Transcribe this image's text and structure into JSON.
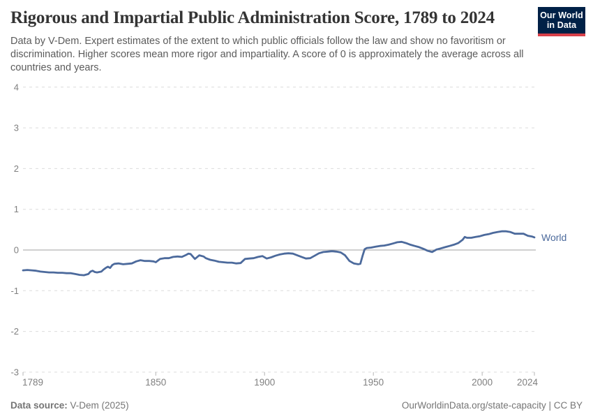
{
  "header": {
    "title": "Rigorous and Impartial Public Administration Score, 1789 to 2024",
    "subtitle": "Data by V-Dem. Expert estimates of the extent to which public officials follow the law and show no favoritism or discrimination. Higher scores mean more rigor and impartiality. A score of 0 is approximately the average across all countries and years.",
    "logo": {
      "line1": "Our World",
      "line2": "in Data"
    }
  },
  "footer": {
    "source_label": "Data source:",
    "source_value": " V-Dem (2025)",
    "link": "OurWorldinData.org/state-capacity | CC BY"
  },
  "colors": {
    "line": "#4c6a9c",
    "series_label": "#4c6a9c",
    "gridline": "#dcdcdc",
    "zero_line": "#a0a0a0",
    "axis_label": "#808080",
    "tick_mark": "#b4b4b4",
    "logo_bg": "#002147",
    "logo_stripe": "#d8404a",
    "title_text": "#343434",
    "subtitle_text": "#5b5b5b",
    "footer_text": "#757575"
  },
  "chart_data": {
    "type": "line",
    "title": "Rigorous and Impartial Public Administration Score, 1789 to 2024",
    "xlabel": "",
    "ylabel": "",
    "xlim": [
      1789,
      2024
    ],
    "ylim": [
      -3,
      4
    ],
    "y_ticks": [
      4,
      3,
      2,
      1,
      0,
      -1,
      -2,
      -3
    ],
    "x_ticks": [
      1789,
      1850,
      1900,
      1950,
      2000,
      2024
    ],
    "grid": "horizontal-dashed",
    "zero_line": true,
    "legend_position": "end-of-line",
    "series": [
      {
        "name": "World",
        "x": [
          1789,
          1791,
          1793,
          1795,
          1797,
          1799,
          1801,
          1803,
          1805,
          1807,
          1809,
          1811,
          1813,
          1815,
          1817,
          1819,
          1820,
          1821,
          1822,
          1823,
          1825,
          1826,
          1827,
          1828,
          1829,
          1830,
          1831,
          1833,
          1835,
          1837,
          1839,
          1841,
          1843,
          1845,
          1847,
          1849,
          1850,
          1852,
          1854,
          1856,
          1858,
          1860,
          1862,
          1864,
          1865,
          1866,
          1868,
          1870,
          1872,
          1873,
          1875,
          1877,
          1879,
          1881,
          1883,
          1885,
          1887,
          1889,
          1891,
          1893,
          1895,
          1897,
          1899,
          1901,
          1903,
          1905,
          1907,
          1909,
          1911,
          1913,
          1915,
          1917,
          1919,
          1921,
          1923,
          1925,
          1927,
          1929,
          1931,
          1933,
          1935,
          1937,
          1939,
          1941,
          1943,
          1944,
          1945,
          1946,
          1947,
          1949,
          1951,
          1953,
          1955,
          1957,
          1959,
          1961,
          1963,
          1965,
          1967,
          1969,
          1971,
          1973,
          1975,
          1977,
          1979,
          1981,
          1983,
          1985,
          1987,
          1989,
          1991,
          1992,
          1993,
          1995,
          1997,
          1999,
          2001,
          2003,
          2005,
          2007,
          2009,
          2011,
          2013,
          2015,
          2017,
          2019,
          2021,
          2023,
          2024
        ],
        "y": [
          -0.5,
          -0.49,
          -0.5,
          -0.51,
          -0.53,
          -0.54,
          -0.55,
          -0.55,
          -0.56,
          -0.56,
          -0.57,
          -0.57,
          -0.59,
          -0.61,
          -0.62,
          -0.59,
          -0.53,
          -0.51,
          -0.54,
          -0.55,
          -0.53,
          -0.48,
          -0.44,
          -0.41,
          -0.44,
          -0.37,
          -0.34,
          -0.33,
          -0.35,
          -0.34,
          -0.33,
          -0.28,
          -0.25,
          -0.27,
          -0.27,
          -0.28,
          -0.3,
          -0.22,
          -0.2,
          -0.2,
          -0.17,
          -0.16,
          -0.17,
          -0.12,
          -0.09,
          -0.1,
          -0.22,
          -0.13,
          -0.16,
          -0.2,
          -0.24,
          -0.26,
          -0.29,
          -0.3,
          -0.31,
          -0.31,
          -0.33,
          -0.32,
          -0.22,
          -0.21,
          -0.2,
          -0.17,
          -0.15,
          -0.21,
          -0.18,
          -0.14,
          -0.11,
          -0.09,
          -0.08,
          -0.09,
          -0.13,
          -0.17,
          -0.21,
          -0.2,
          -0.14,
          -0.08,
          -0.05,
          -0.04,
          -0.03,
          -0.04,
          -0.06,
          -0.13,
          -0.27,
          -0.33,
          -0.35,
          -0.34,
          -0.15,
          0.02,
          0.05,
          0.06,
          0.08,
          0.1,
          0.11,
          0.13,
          0.16,
          0.19,
          0.2,
          0.17,
          0.13,
          0.1,
          0.07,
          0.03,
          -0.02,
          -0.05,
          0.01,
          0.04,
          0.07,
          0.1,
          0.13,
          0.17,
          0.25,
          0.32,
          0.3,
          0.3,
          0.32,
          0.34,
          0.37,
          0.39,
          0.42,
          0.44,
          0.46,
          0.46,
          0.44,
          0.4,
          0.4,
          0.4,
          0.35,
          0.33,
          0.31
        ]
      }
    ]
  }
}
